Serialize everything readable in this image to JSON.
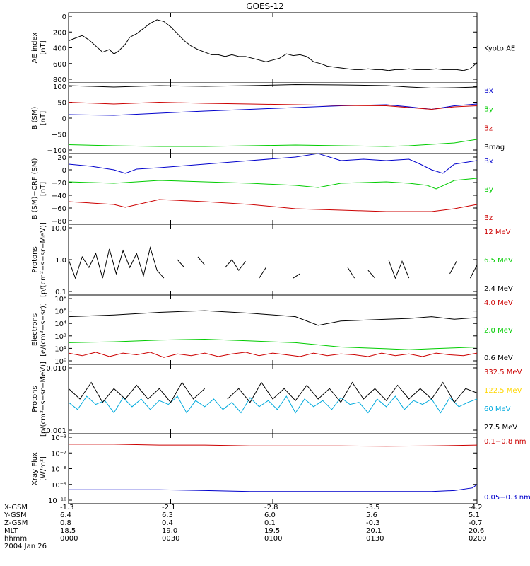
{
  "title": "GOES-12",
  "colors": {
    "black": "#000000",
    "blue": "#0000cc",
    "green": "#00cc00",
    "red": "#cc0000",
    "yellow": "#ffd700",
    "cyan": "#00aadd"
  },
  "chart_data": [
    {
      "id": "ae",
      "type": "line",
      "ylabel": [
        "AE index",
        "[nT]"
      ],
      "yticks": [
        "0",
        "200",
        "400",
        "600",
        "800"
      ],
      "ylim": [
        0,
        800
      ],
      "scale": "linear",
      "series": [
        {
          "name": "Kyoto AE",
          "color": "black",
          "x": [
            0,
            3,
            6,
            9,
            12,
            15,
            18,
            20,
            22,
            25,
            27,
            30,
            33,
            36,
            39,
            42,
            45,
            48,
            51,
            54,
            57,
            60,
            63,
            66,
            69,
            72,
            75,
            78,
            81,
            84,
            87,
            90,
            93,
            96,
            99,
            102,
            105,
            108,
            111,
            114,
            117,
            120,
            123,
            126,
            129,
            132,
            135,
            138,
            141,
            144,
            147,
            150,
            153,
            156,
            159,
            162,
            165,
            168,
            171,
            174,
            177,
            180
          ],
          "y": [
            480,
            510,
            540,
            490,
            420,
            350,
            380,
            330,
            360,
            440,
            520,
            560,
            620,
            680,
            720,
            700,
            640,
            560,
            480,
            420,
            380,
            350,
            320,
            320,
            300,
            320,
            300,
            300,
            280,
            260,
            240,
            260,
            280,
            330,
            310,
            320,
            300,
            240,
            220,
            190,
            180,
            170,
            160,
            150,
            150,
            160,
            150,
            150,
            140,
            150,
            150,
            160,
            150,
            150,
            150,
            160,
            150,
            150,
            150,
            140,
            160,
            230
          ]
        }
      ]
    },
    {
      "id": "bsm",
      "type": "line",
      "ylabel": [
        "B (SM)",
        "[nT]"
      ],
      "yticks": [
        "100",
        "50",
        "0",
        "−50",
        "−100"
      ],
      "ylim": [
        -100,
        100
      ],
      "scale": "linear",
      "series": [
        {
          "name": "Bx",
          "color": "blue",
          "x": [
            0,
            20,
            40,
            60,
            80,
            100,
            120,
            140,
            150,
            160,
            170,
            180
          ],
          "y": [
            10,
            8,
            14,
            20,
            25,
            30,
            35,
            38,
            32,
            25,
            35,
            40
          ]
        },
        {
          "name": "By",
          "color": "green",
          "x": [
            0,
            20,
            40,
            60,
            80,
            100,
            120,
            140,
            150,
            160,
            170,
            180
          ],
          "y": [
            -75,
            -78,
            -80,
            -80,
            -78,
            -76,
            -78,
            -80,
            -78,
            -74,
            -70,
            -60
          ]
        },
        {
          "name": "Bz",
          "color": "red",
          "x": [
            0,
            20,
            40,
            60,
            80,
            100,
            120,
            140,
            150,
            160,
            170,
            180
          ],
          "y": [
            45,
            40,
            45,
            42,
            40,
            38,
            36,
            35,
            30,
            25,
            32,
            35
          ]
        },
        {
          "name": "Bmag",
          "color": "black",
          "x": [
            0,
            20,
            40,
            60,
            80,
            100,
            120,
            140,
            150,
            160,
            170,
            180
          ],
          "y": [
            92,
            88,
            92,
            90,
            92,
            95,
            94,
            92,
            88,
            85,
            86,
            88
          ]
        }
      ]
    },
    {
      "id": "bcrf",
      "type": "line",
      "ylabel": [
        "B (SM)−CRF (SM)",
        "[nT]"
      ],
      "yticks": [
        "20",
        "0",
        "−20",
        "−40",
        "−60",
        "−80"
      ],
      "ylim": [
        -80,
        20
      ],
      "scale": "linear",
      "series": [
        {
          "name": "Bx",
          "color": "blue",
          "x": [
            0,
            10,
            20,
            25,
            30,
            40,
            60,
            80,
            100,
            110,
            120,
            130,
            140,
            150,
            155,
            160,
            165,
            170,
            180
          ],
          "y": [
            5,
            2,
            -3,
            -8,
            -2,
            0,
            5,
            10,
            15,
            20,
            10,
            12,
            10,
            12,
            5,
            -3,
            -8,
            5,
            10
          ]
        },
        {
          "name": "By",
          "color": "green",
          "x": [
            0,
            20,
            40,
            60,
            80,
            100,
            110,
            120,
            140,
            150,
            158,
            162,
            170,
            180
          ],
          "y": [
            -20,
            -22,
            -18,
            -20,
            -22,
            -25,
            -28,
            -22,
            -20,
            -22,
            -25,
            -30,
            -18,
            -15
          ]
        },
        {
          "name": "Bz",
          "color": "red",
          "x": [
            0,
            20,
            25,
            40,
            60,
            80,
            100,
            120,
            140,
            150,
            160,
            170,
            180
          ],
          "y": [
            -48,
            -52,
            -56,
            -45,
            -48,
            -52,
            -58,
            -60,
            -62,
            -62,
            -62,
            -58,
            -52
          ]
        }
      ]
    },
    {
      "id": "protons",
      "type": "line",
      "ylabel": [
        "Protons",
        "[p/(cm²−s−sr−MeV)]"
      ],
      "yticks": [
        "10.0",
        "1.0",
        "0.1"
      ],
      "ylim": [
        0.1,
        10
      ],
      "scale": "log",
      "series": [
        {
          "name": "12 MeV",
          "color": "red",
          "x": [],
          "y": []
        },
        {
          "name": "6.5 MeV",
          "color": "green",
          "x": [],
          "y": []
        },
        {
          "name": "2.4 MeV",
          "color": "black",
          "x": [
            0,
            3,
            6,
            9,
            12,
            15,
            18,
            21,
            24,
            27,
            30,
            33,
            36,
            39,
            42,
            45,
            48,
            51,
            54,
            57,
            60,
            63,
            66,
            69,
            72,
            75,
            78,
            81,
            84,
            87,
            90,
            93,
            96,
            99,
            102,
            105,
            108,
            111,
            114,
            117,
            120,
            123,
            126,
            129,
            132,
            135,
            138,
            141,
            144,
            147,
            150,
            153,
            156,
            159,
            162,
            165,
            168,
            171,
            174,
            177,
            180
          ],
          "y": [
            1.0,
            0.3,
            1.2,
            0.6,
            1.5,
            0.3,
            2.0,
            0.4,
            1.8,
            0.6,
            1.5,
            0.35,
            2.2,
            0.5,
            0.3,
            null,
            1.0,
            0.6,
            null,
            1.2,
            0.7,
            null,
            null,
            0.6,
            1.0,
            0.5,
            0.9,
            null,
            0.3,
            0.6,
            null,
            0.3,
            null,
            0.3,
            0.4,
            null,
            0.3,
            null,
            0.3,
            null,
            null,
            0.6,
            0.3,
            null,
            0.5,
            0.3,
            null,
            1.0,
            0.3,
            0.9,
            0.3,
            null,
            null,
            0.3,
            null,
            null,
            0.4,
            0.9,
            null,
            0.3,
            0.7
          ]
        }
      ]
    },
    {
      "id": "electrons",
      "type": "line",
      "ylabel": [
        "Electrons",
        "[e/(cm²−s−sr)]"
      ],
      "yticks": [
        "10⁸",
        "10⁶",
        "10⁴",
        "10³",
        "10¹",
        "10⁰"
      ],
      "ylim": [
        0,
        8
      ],
      "scale": "log",
      "series": [
        {
          "name": "4.0 MeV",
          "color": "red",
          "x": [
            0,
            6,
            12,
            18,
            24,
            30,
            36,
            42,
            48,
            54,
            60,
            66,
            72,
            78,
            84,
            90,
            96,
            102,
            108,
            114,
            120,
            126,
            132,
            138,
            144,
            150,
            156,
            162,
            168,
            174,
            180
          ],
          "y": [
            1.3,
            1.0,
            1.4,
            0.9,
            1.3,
            1.1,
            1.4,
            0.8,
            1.2,
            1.0,
            1.3,
            0.9,
            1.2,
            1.4,
            1.0,
            1.3,
            1.1,
            0.9,
            1.3,
            1.0,
            1.2,
            1.1,
            0.9,
            1.3,
            1.0,
            1.2,
            0.9,
            1.3,
            1.1,
            1.0,
            1.3
          ]
        },
        {
          "name": "2.0 MeV",
          "color": "green",
          "x": [
            0,
            20,
            40,
            60,
            80,
            100,
            120,
            140,
            150,
            160,
            170,
            180
          ],
          "y": [
            2.5,
            2.6,
            2.8,
            2.9,
            2.7,
            2.5,
            2.0,
            1.8,
            1.7,
            1.8,
            1.9,
            2.0
          ]
        },
        {
          "name": "0.6 MeV",
          "color": "black",
          "x": [
            0,
            20,
            40,
            60,
            80,
            100,
            110,
            120,
            140,
            150,
            160,
            170,
            180
          ],
          "y": [
            5.5,
            5.7,
            6.0,
            6.2,
            5.9,
            5.5,
            4.5,
            5.0,
            5.2,
            5.3,
            5.5,
            5.2,
            5.4
          ]
        }
      ]
    },
    {
      "id": "hiprotons",
      "type": "line",
      "ylabel": [
        "Protons",
        "[p/(cm²−s−sr−MeV)]"
      ],
      "yticks": [
        "0.010",
        "0.001"
      ],
      "ylim": [
        0.001,
        0.1
      ],
      "scale": "log",
      "series": [
        {
          "name": "332.5 MeV",
          "color": "red",
          "x": [],
          "y": []
        },
        {
          "name": "122.5 MeV",
          "color": "yellow",
          "x": [],
          "y": []
        },
        {
          "name": "60 MeV",
          "color": "cyan",
          "x": [
            0,
            4,
            8,
            12,
            16,
            20,
            24,
            28,
            32,
            36,
            40,
            44,
            48,
            52,
            56,
            60,
            64,
            68,
            72,
            76,
            80,
            84,
            88,
            92,
            96,
            100,
            104,
            108,
            112,
            116,
            120,
            124,
            128,
            132,
            136,
            140,
            144,
            148,
            152,
            156,
            160,
            164,
            168,
            172,
            176,
            180
          ],
          "y": [
            0.008,
            0.005,
            0.012,
            0.007,
            0.009,
            0.004,
            0.011,
            0.006,
            0.01,
            0.005,
            0.009,
            0.007,
            0.012,
            0.004,
            0.009,
            0.006,
            0.01,
            0.005,
            0.008,
            0.004,
            0.011,
            0.006,
            0.009,
            0.005,
            0.012,
            0.004,
            0.01,
            0.006,
            0.009,
            0.005,
            0.011,
            0.007,
            0.008,
            0.004,
            0.01,
            0.006,
            0.012,
            0.005,
            0.009,
            0.007,
            0.01,
            0.004,
            0.011,
            0.006,
            0.008,
            0.01
          ]
        },
        {
          "name": "27.5 MeV",
          "color": "black",
          "x": [
            0,
            5,
            10,
            15,
            20,
            25,
            30,
            35,
            40,
            45,
            50,
            55,
            60,
            65,
            70,
            75,
            80,
            85,
            90,
            95,
            100,
            105,
            110,
            115,
            120,
            125,
            130,
            135,
            140,
            145,
            150,
            155,
            160,
            165,
            170,
            175,
            180
          ],
          "y": [
            0.02,
            0.01,
            0.03,
            0.008,
            0.02,
            0.01,
            0.025,
            0.01,
            0.02,
            0.008,
            0.03,
            0.01,
            0.02,
            null,
            0.01,
            0.02,
            0.008,
            0.03,
            0.01,
            0.02,
            0.009,
            0.025,
            0.01,
            0.02,
            0.008,
            0.03,
            0.01,
            0.02,
            0.009,
            0.025,
            0.01,
            0.02,
            0.01,
            0.03,
            0.008,
            0.02,
            0.015
          ]
        }
      ]
    },
    {
      "id": "xray",
      "type": "line",
      "ylabel": [
        "Xray Flux",
        "[W/m²]"
      ],
      "yticks": [
        "10⁻³",
        "10⁻⁷",
        "10⁻⁸",
        "10⁻⁹",
        "10⁻¹⁰"
      ],
      "ylim": [
        -10,
        -6
      ],
      "scale": "log",
      "series": [
        {
          "name": "0.1−0.8 nm",
          "color": "red",
          "x": [
            0,
            20,
            40,
            60,
            80,
            100,
            120,
            140,
            160,
            180
          ],
          "y": [
            -6.6,
            -6.6,
            -6.65,
            -6.65,
            -6.7,
            -6.7,
            -6.7,
            -6.72,
            -6.7,
            -6.65
          ]
        },
        {
          "name": "0.05−0.3 nm",
          "color": "blue",
          "x": [
            0,
            20,
            40,
            60,
            80,
            100,
            120,
            140,
            160,
            170,
            178,
            180
          ],
          "y": [
            -9.2,
            -9.2,
            -9.2,
            -9.25,
            -9.3,
            -9.3,
            -9.3,
            -9.3,
            -9.3,
            -9.25,
            -9.1,
            -8.9
          ]
        }
      ]
    }
  ],
  "axis": {
    "xlim": [
      0,
      180
    ],
    "rows": [
      {
        "label": "X-GSM",
        "values": [
          "-1.3",
          "-2.1",
          "-2.8",
          "-3.5",
          "-4.2"
        ]
      },
      {
        "label": "Y-GSM",
        "values": [
          "6.4",
          "6.3",
          "6.0",
          "5.6",
          "5.1"
        ]
      },
      {
        "label": "Z-GSM",
        "values": [
          "0.8",
          "0.4",
          "0.1",
          "-0.3",
          "-0.7"
        ]
      },
      {
        "label": "MLT",
        "values": [
          "18.5",
          "19.0",
          "19.5",
          "20.1",
          "20.6"
        ]
      },
      {
        "label": "hhmm",
        "values": [
          "0000",
          "0030",
          "0100",
          "0130",
          "0200"
        ]
      }
    ],
    "date": "2004 Jan 26"
  }
}
